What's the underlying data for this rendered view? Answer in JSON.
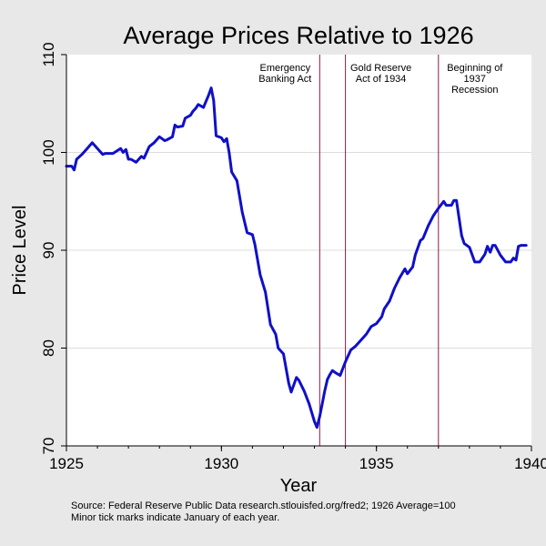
{
  "chart_data": {
    "type": "line",
    "title": "Average Prices Relative to 1926",
    "xlabel": "Year",
    "ylabel": "Price Level",
    "xlim": [
      1925,
      1940
    ],
    "ylim": [
      70,
      110
    ],
    "xticks": [
      "1925",
      "1930",
      "1935",
      "1940"
    ],
    "yticks": [
      "70",
      "80",
      "90",
      "100",
      "110"
    ],
    "grid": "horizontal",
    "colors": {
      "line": "#1010c8",
      "vline": "#8b1a4a",
      "plot_bg": "#ffffff",
      "page_bg": "#e8e8e8",
      "grid": "#dcdcdc"
    },
    "annotations": [
      {
        "x": 1933.17,
        "lines": [
          "Emergency",
          "Banking Act"
        ]
      },
      {
        "x": 1934.0,
        "lines": [
          "Gold Reserve",
          "Act of 1934"
        ]
      },
      {
        "x": 1937.0,
        "lines": [
          "Beginning of",
          "1937",
          "Recession"
        ]
      }
    ],
    "series": [
      {
        "x": [
          1925.0,
          1925.17,
          1925.25,
          1925.33,
          1925.5,
          1925.67,
          1925.83,
          1926.0,
          1926.17,
          1926.25,
          1926.5,
          1926.75,
          1926.83,
          1926.92,
          1927.0,
          1927.08,
          1927.25,
          1927.42,
          1927.5,
          1927.67,
          1927.83,
          1928.0,
          1928.17,
          1928.25,
          1928.42,
          1928.5,
          1928.58,
          1928.75,
          1928.83,
          1929.0,
          1929.08,
          1929.17,
          1929.25,
          1929.42,
          1929.5,
          1929.58,
          1929.67,
          1929.75,
          1929.83,
          1930.0,
          1930.08,
          1930.17,
          1930.25,
          1930.33,
          1930.5,
          1930.67,
          1930.83,
          1931.0,
          1931.08,
          1931.25,
          1931.42,
          1931.58,
          1931.75,
          1931.83,
          1932.0,
          1932.17,
          1932.25,
          1932.42,
          1932.5,
          1932.67,
          1932.83,
          1933.0,
          1933.08,
          1933.17,
          1933.25,
          1933.33,
          1933.42,
          1933.5,
          1933.58,
          1933.67,
          1933.83,
          1934.0,
          1934.17,
          1934.33,
          1934.5,
          1934.67,
          1934.83,
          1935.0,
          1935.17,
          1935.25,
          1935.42,
          1935.58,
          1935.75,
          1935.92,
          1936.0,
          1936.17,
          1936.25,
          1936.42,
          1936.5,
          1936.67,
          1936.83,
          1937.0,
          1937.17,
          1937.25,
          1937.42,
          1937.5,
          1937.58,
          1937.67,
          1937.75,
          1937.83,
          1938.0,
          1938.17,
          1938.33,
          1938.5,
          1938.58,
          1938.67,
          1938.75,
          1938.83,
          1939.0,
          1939.17,
          1939.33,
          1939.42,
          1939.5,
          1939.58,
          1939.67,
          1939.83
        ],
        "values": [
          98.6,
          98.6,
          98.2,
          99.3,
          99.8,
          100.4,
          101.0,
          100.4,
          99.8,
          99.9,
          99.9,
          100.4,
          100.0,
          100.3,
          99.3,
          99.3,
          99.0,
          99.6,
          99.4,
          100.6,
          101.0,
          101.6,
          101.2,
          101.3,
          101.6,
          102.8,
          102.6,
          102.7,
          103.5,
          103.8,
          104.2,
          104.5,
          104.9,
          104.6,
          105.2,
          105.8,
          106.6,
          105.3,
          101.7,
          101.5,
          101.1,
          101.4,
          100.0,
          98.0,
          97.1,
          93.9,
          91.8,
          91.6,
          90.6,
          87.5,
          85.7,
          82.4,
          81.4,
          80.0,
          79.4,
          76.4,
          75.5,
          77.0,
          76.7,
          75.6,
          74.3,
          72.5,
          71.9,
          73.0,
          74.3,
          75.6,
          76.8,
          77.3,
          77.7,
          77.5,
          77.2,
          78.6,
          79.8,
          80.2,
          80.8,
          81.4,
          82.2,
          82.5,
          83.2,
          84.0,
          84.8,
          86.1,
          87.2,
          88.1,
          87.6,
          88.3,
          89.5,
          91.0,
          91.2,
          92.5,
          93.5,
          94.3,
          95.0,
          94.6,
          94.6,
          95.1,
          95.1,
          93.2,
          91.5,
          90.7,
          90.3,
          88.8,
          88.8,
          89.6,
          90.4,
          89.8,
          90.5,
          90.5,
          89.5,
          88.8,
          88.8,
          89.2,
          89.0,
          90.4,
          90.5,
          90.5
        ]
      }
    ]
  },
  "source_note": {
    "line1": "Source: Federal Reserve Public Data research.stlouisfed.org/fred2; 1926 Average=100",
    "line2": "Minor tick marks indicate January of each year."
  }
}
